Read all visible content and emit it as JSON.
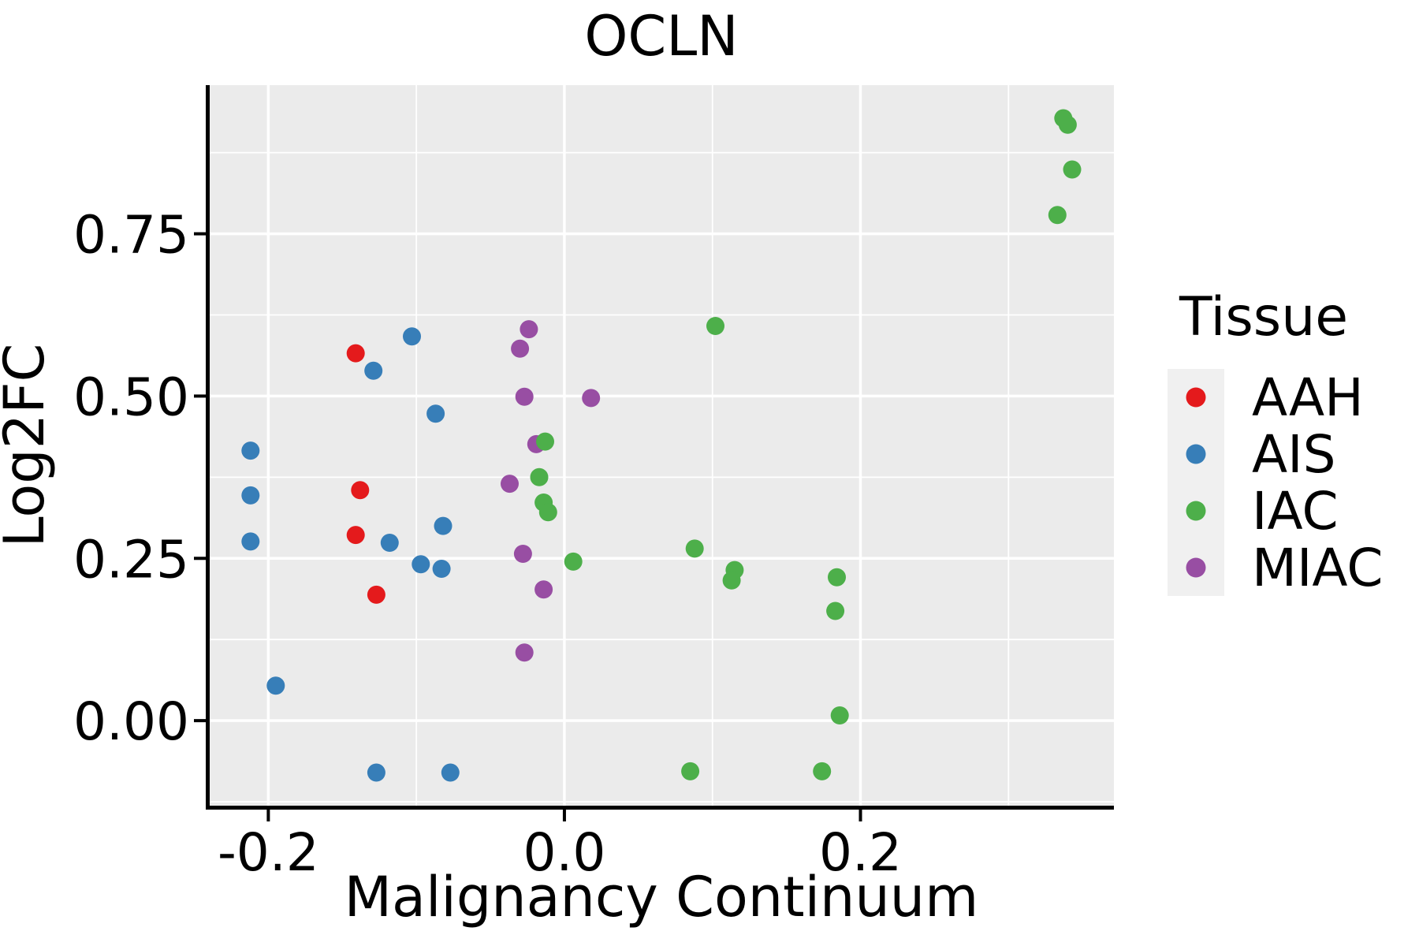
{
  "title": "OCLN",
  "colors": {
    "panel_background": "#EBEBEB",
    "gridline": "#FFFFFF",
    "axis_line": "#000000",
    "text": "#000000",
    "legend_key_background": "#F0F0F0",
    "aah": "#E41A1C",
    "ais": "#377EB8",
    "iac": "#4DAF4A",
    "miac": "#984EA3"
  },
  "legend": {
    "title": "Tissue"
  },
  "chart_data": {
    "type": "scatter",
    "title": "OCLN",
    "xlabel": "Malignancy Continuum",
    "ylabel": "Log2FC",
    "xlim": [
      -0.2396,
      0.3712
    ],
    "ylim": [
      -0.131,
      0.979
    ],
    "grid": {
      "major": true,
      "minor": true
    },
    "legend_position": "right",
    "x_ticks": [
      {
        "label": "-0.2",
        "value": -0.2
      },
      {
        "label": "0.0",
        "value": 0.0
      },
      {
        "label": "0.2",
        "value": 0.2
      }
    ],
    "y_ticks": [
      {
        "label": "0.00",
        "value": 0.0
      },
      {
        "label": "0.25",
        "value": 0.25
      },
      {
        "label": "0.50",
        "value": 0.5
      },
      {
        "label": "0.75",
        "value": 0.75
      }
    ],
    "series": [
      {
        "name": "AAH",
        "color": "#E41A1C",
        "points": [
          [
            -0.141,
            0.566
          ],
          [
            -0.138,
            0.355
          ],
          [
            -0.141,
            0.286
          ],
          [
            -0.127,
            0.194
          ]
        ]
      },
      {
        "name": "AIS",
        "color": "#377EB8",
        "points": [
          [
            -0.103,
            0.592
          ],
          [
            -0.129,
            0.539
          ],
          [
            -0.087,
            0.473
          ],
          [
            -0.212,
            0.416
          ],
          [
            -0.212,
            0.347
          ],
          [
            -0.212,
            0.276
          ],
          [
            -0.118,
            0.274
          ],
          [
            -0.097,
            0.241
          ],
          [
            -0.083,
            0.234
          ],
          [
            -0.082,
            0.3
          ],
          [
            -0.195,
            0.054
          ],
          [
            -0.127,
            -0.08
          ],
          [
            -0.077,
            -0.08
          ]
        ]
      },
      {
        "name": "IAC",
        "color": "#4DAF4A",
        "points": [
          [
            0.337,
            0.928
          ],
          [
            0.34,
            0.918
          ],
          [
            0.343,
            0.849
          ],
          [
            0.333,
            0.779
          ],
          [
            0.102,
            0.608
          ],
          [
            -0.013,
            0.43
          ],
          [
            -0.017,
            0.375
          ],
          [
            -0.014,
            0.336
          ],
          [
            -0.011,
            0.321
          ],
          [
            0.006,
            0.245
          ],
          [
            0.088,
            0.265
          ],
          [
            0.115,
            0.232
          ],
          [
            0.113,
            0.216
          ],
          [
            0.184,
            0.221
          ],
          [
            0.183,
            0.169
          ],
          [
            0.186,
            0.008
          ],
          [
            0.085,
            -0.078
          ],
          [
            0.174,
            -0.078
          ]
        ]
      },
      {
        "name": "MIAC",
        "color": "#984EA3",
        "points": [
          [
            -0.024,
            0.603
          ],
          [
            -0.03,
            0.573
          ],
          [
            -0.027,
            0.499
          ],
          [
            0.018,
            0.497
          ],
          [
            -0.019,
            0.426
          ],
          [
            -0.037,
            0.365
          ],
          [
            -0.028,
            0.257
          ],
          [
            -0.014,
            0.202
          ],
          [
            -0.027,
            0.105
          ]
        ]
      }
    ]
  }
}
